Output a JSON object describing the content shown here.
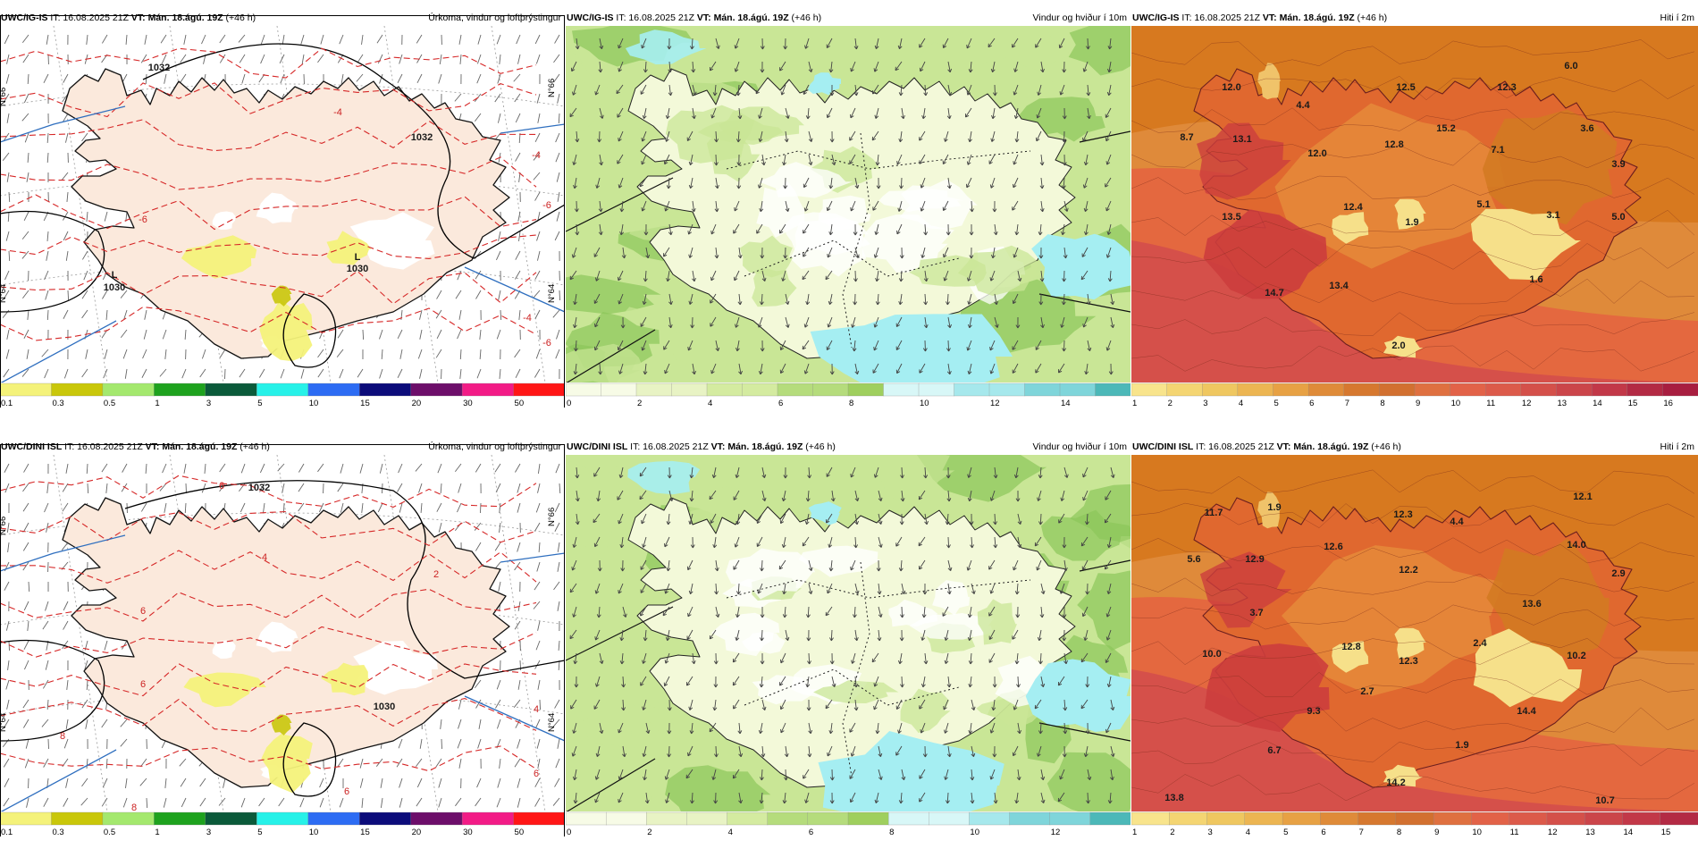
{
  "colors": {
    "land": "#fbe9dc",
    "sea_p": "#ffffff",
    "isobar": "#000000",
    "temp_contour": "#d62828",
    "wind_light": "#f3f9d9",
    "wind_mid": "#c9e696",
    "wind_dark": "#8cc65a",
    "wind_cyan": "#a5eef2",
    "temp_hot": "#cc3d3d",
    "temp_warm": "#e0682f",
    "temp_orange": "#d7791f",
    "temp_cool": "#f6e08a"
  },
  "rows": [
    {
      "model": "UWC/IG-IS",
      "it": "IT: 16.08.2025 21Z",
      "vt_label": "VT:",
      "vt": "Mán. 18.ágú. 19Z",
      "lead": "(+46 h)",
      "titles": [
        "Úrkoma, vindur og loftþrýstingur",
        "Vindur og hviður í 10m",
        "Hiti í 2m"
      ],
      "precip_labels": [
        "1032",
        "1032",
        "1030",
        "1030",
        "L",
        "L",
        "-4",
        "-4",
        "-6",
        "-6",
        "-4",
        "-6"
      ],
      "lat_labels": [
        "N°66",
        "N°64",
        "N°64",
        "N°66"
      ],
      "temps": [
        "12.0",
        "4.4",
        "12.5",
        "12.3",
        "6.0",
        "8.7",
        "13.1",
        "12.0",
        "12.8",
        "15.2",
        "7.1",
        "3.6",
        "3.9",
        "13.5",
        "12.4",
        "1.9",
        "5.1",
        "3.1",
        "5.0",
        "13.4",
        "14.7",
        "1.6",
        "2.0"
      ],
      "cbar_precip": [
        "0.1",
        "0.3",
        "0.5",
        "1",
        "3",
        "5",
        "10",
        "15",
        "20",
        "30",
        "50"
      ],
      "cbar_wind": [
        "0",
        "2",
        "4",
        "6",
        "8",
        "10",
        "12",
        "14"
      ],
      "cbar_temp": [
        "1",
        "2",
        "3",
        "4",
        "5",
        "6",
        "7",
        "8",
        "9",
        "10",
        "11",
        "12",
        "13",
        "14",
        "15",
        "16"
      ]
    },
    {
      "model": "UWC/DINI ISL",
      "it": "IT: 16.08.2025 21Z",
      "vt_label": "VT:",
      "vt": "Mán. 18.ágú. 19Z",
      "lead": "(+46 h)",
      "titles": [
        "Úrkoma, vindur og loftþrýstingur",
        "Vindur og hviður í 10m",
        "Hiti í 2m"
      ],
      "precip_labels": [
        "1032",
        "1030",
        "6",
        "4",
        "6",
        "8",
        "6",
        "8",
        "2",
        "6",
        "6",
        "4"
      ],
      "lat_labels": [
        "N°66",
        "N°64",
        "N°64",
        "N°66"
      ],
      "temps": [
        "11.7",
        "1.9",
        "12.3",
        "4.4",
        "12.1",
        "5.6",
        "12.9",
        "12.6",
        "12.2",
        "14.0",
        "2.9",
        "3.7",
        "13.6",
        "10.0",
        "12.8",
        "12.3",
        "2.4",
        "10.2",
        "2.7",
        "9.3",
        "14.4",
        "1.9",
        "6.7",
        "14.2",
        "13.8",
        "10.7"
      ],
      "cbar_precip": [
        "0.1",
        "0.3",
        "0.5",
        "1",
        "3",
        "5",
        "10",
        "15",
        "20",
        "30",
        "50"
      ],
      "cbar_wind": [
        "0",
        "2",
        "4",
        "6",
        "8",
        "10",
        "12"
      ],
      "cbar_temp": [
        "1",
        "2",
        "3",
        "4",
        "5",
        "6",
        "7",
        "8",
        "9",
        "10",
        "11",
        "12",
        "13",
        "14",
        "15"
      ]
    }
  ]
}
